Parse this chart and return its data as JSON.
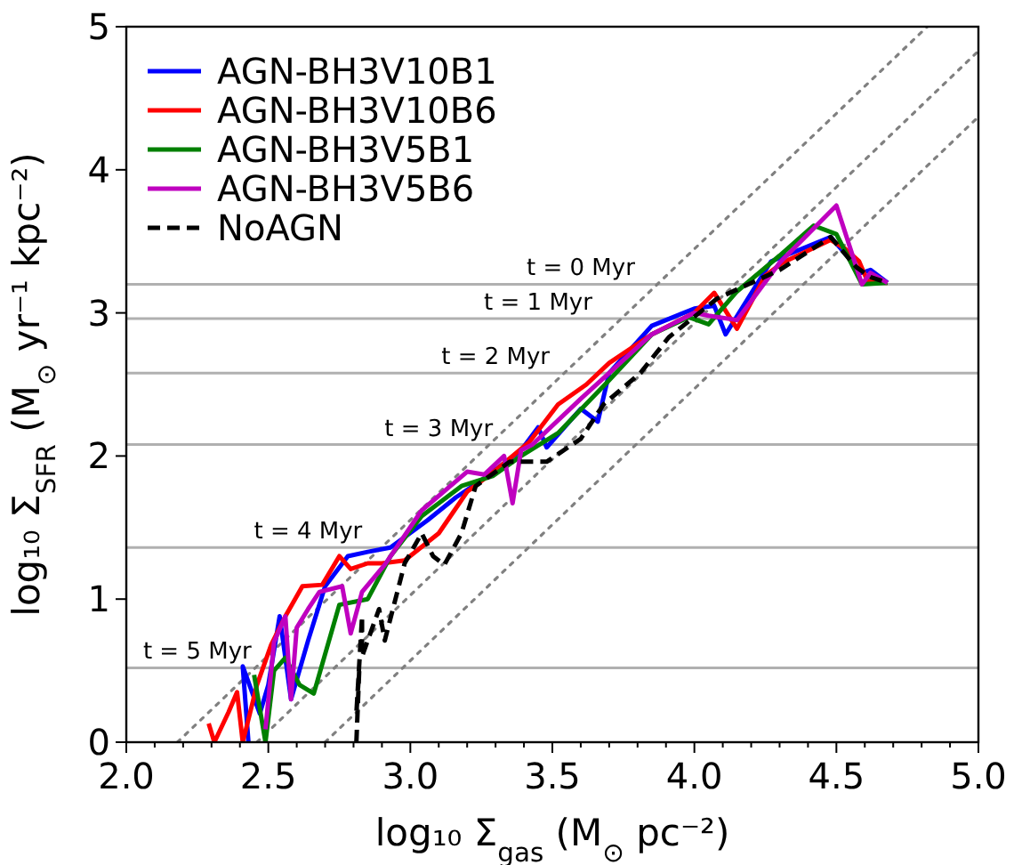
{
  "chart_data": {
    "type": "line",
    "xlabel": "log₁₀ Σ$_{gas}$ (M$_{⊙}$ pc⁻²)",
    "ylabel": "log₁₀ Σ$_{SFR}$ (M$_{⊙}$ yr⁻¹ kpc⁻²)",
    "xlim": [
      2,
      5
    ],
    "ylim": [
      0,
      5
    ],
    "xticks": [
      {
        "value": 2,
        "label": "2.0"
      },
      {
        "value": 2.1,
        "label": null
      },
      {
        "value": 2.2,
        "label": null
      },
      {
        "value": 2.3,
        "label": null
      },
      {
        "value": 2.4,
        "label": null
      },
      {
        "value": 2.5,
        "label": "2.5"
      },
      {
        "value": 2.6,
        "label": null
      },
      {
        "value": 2.7,
        "label": null
      },
      {
        "value": 2.8,
        "label": null
      },
      {
        "value": 2.9,
        "label": null
      },
      {
        "value": 3,
        "label": "3.0"
      },
      {
        "value": 3.1,
        "label": null
      },
      {
        "value": 3.2,
        "label": null
      },
      {
        "value": 3.3,
        "label": null
      },
      {
        "value": 3.4,
        "label": null
      },
      {
        "value": 3.5,
        "label": "3.5"
      },
      {
        "value": 3.6,
        "label": null
      },
      {
        "value": 3.7,
        "label": null
      },
      {
        "value": 3.8,
        "label": null
      },
      {
        "value": 3.9,
        "label": null
      },
      {
        "value": 4,
        "label": "4.0"
      },
      {
        "value": 4.1,
        "label": null
      },
      {
        "value": 4.2,
        "label": null
      },
      {
        "value": 4.3,
        "label": null
      },
      {
        "value": 4.4,
        "label": null
      },
      {
        "value": 4.5,
        "label": "4.5"
      },
      {
        "value": 4.6,
        "label": null
      },
      {
        "value": 4.7,
        "label": null
      },
      {
        "value": 4.8,
        "label": null
      },
      {
        "value": 4.9,
        "label": null
      },
      {
        "value": 5,
        "label": "5.0"
      }
    ],
    "yticks": [
      0,
      1,
      2,
      3,
      4,
      5
    ],
    "grid": false,
    "legend": "top left",
    "series": [
      {
        "color": "#808080",
        "line_style": "dotted",
        "x": [
          2.18,
          4.82
        ],
        "values": [
          0,
          5
        ]
      },
      {
        "color": "#808080",
        "line_style": "dotted",
        "x": [
          2.46,
          5.0
        ],
        "values": [
          0,
          4.83
        ]
      },
      {
        "color": "#808080",
        "line_style": "dotted",
        "x": [
          2.7,
          5.0
        ],
        "values": [
          0,
          4.37
        ]
      },
      {
        "name": "AGN-BH3V10B1",
        "color": "#0000ff",
        "line_style": "solid",
        "x": [
          2.43,
          2.41,
          2.47,
          2.5,
          2.54,
          2.58,
          2.64,
          2.7,
          2.78,
          2.85,
          2.93,
          3.06,
          3.16,
          3.25,
          3.39,
          3.45,
          3.48,
          3.6,
          3.66,
          3.7,
          3.85,
          4.0,
          4.07,
          4.11,
          4.27,
          4.48,
          4.59,
          4.62,
          4.68
        ],
        "values": [
          0.0,
          0.53,
          0.2,
          0.4,
          0.88,
          0.3,
          0.71,
          1.09,
          1.3,
          1.33,
          1.36,
          1.55,
          1.71,
          1.83,
          2.04,
          2.2,
          2.06,
          2.33,
          2.24,
          2.58,
          2.91,
          3.03,
          3.05,
          2.85,
          3.36,
          3.53,
          3.28,
          3.3,
          3.21
        ]
      },
      {
        "name": "AGN-BH3V10B6",
        "color": "#ff0000",
        "line_style": "solid",
        "x": [
          2.29,
          2.31,
          2.36,
          2.39,
          2.41,
          2.46,
          2.51,
          2.56,
          2.62,
          2.69,
          2.75,
          2.79,
          2.85,
          2.9,
          2.98,
          3.1,
          3.2,
          3.3,
          3.42,
          3.52,
          3.62,
          3.7,
          3.85,
          4.0,
          4.07,
          4.15,
          4.25,
          4.31,
          4.48,
          4.53,
          4.58,
          4.61,
          4.68
        ],
        "values": [
          0.13,
          0.0,
          0.21,
          0.35,
          0.0,
          0.4,
          0.68,
          0.88,
          1.09,
          1.1,
          1.3,
          1.21,
          1.25,
          1.25,
          1.27,
          1.46,
          1.75,
          1.9,
          2.1,
          2.36,
          2.5,
          2.65,
          2.85,
          3.0,
          3.14,
          2.89,
          3.26,
          3.35,
          3.51,
          3.45,
          3.36,
          3.22,
          3.21
        ]
      },
      {
        "name": "AGN-BH3V5B1",
        "color": "#008000",
        "line_style": "solid",
        "x": [
          2.45,
          2.49,
          2.52,
          2.56,
          2.61,
          2.66,
          2.75,
          2.85,
          2.93,
          3.04,
          3.18,
          3.29,
          3.39,
          3.52,
          3.7,
          3.85,
          3.98,
          4.05,
          4.15,
          4.3,
          4.42,
          4.5,
          4.59,
          4.68
        ],
        "values": [
          0.47,
          0.0,
          0.5,
          0.59,
          0.4,
          0.34,
          0.96,
          1.0,
          1.3,
          1.58,
          1.79,
          1.86,
          2.0,
          2.16,
          2.53,
          2.85,
          2.97,
          2.92,
          3.15,
          3.4,
          3.61,
          3.55,
          3.2,
          3.21
        ]
      },
      {
        "name": "AGN-BH3V5B6",
        "color": "#bf00bf",
        "line_style": "solid",
        "x": [
          2.49,
          2.52,
          2.56,
          2.58,
          2.6,
          2.64,
          2.68,
          2.76,
          2.79,
          2.83,
          2.91,
          3.04,
          3.2,
          3.26,
          3.33,
          3.36,
          3.39,
          3.43,
          3.6,
          3.7,
          3.85,
          4.0,
          4.05,
          4.15,
          4.3,
          4.5,
          4.59,
          4.62,
          4.68
        ],
        "values": [
          0.09,
          0.7,
          0.88,
          0.3,
          0.8,
          0.93,
          1.05,
          1.09,
          0.76,
          1.05,
          1.24,
          1.62,
          1.89,
          1.87,
          2.0,
          1.67,
          2.04,
          2.08,
          2.4,
          2.58,
          2.85,
          3.0,
          2.98,
          2.95,
          3.35,
          3.75,
          3.2,
          3.28,
          3.21
        ]
      },
      {
        "name": "NoAGN",
        "color": "#000000",
        "line_style": "dashed",
        "x": [
          2.81,
          2.82,
          2.81,
          2.83,
          2.83,
          2.89,
          2.91,
          2.98,
          3.04,
          3.08,
          3.12,
          3.18,
          3.23,
          3.35,
          3.48,
          3.6,
          3.68,
          3.81,
          3.91,
          4.08,
          4.3,
          4.48,
          4.57,
          4.62,
          4.68
        ],
        "values": [
          0.0,
          0.5,
          0.2,
          0.88,
          0.6,
          0.93,
          0.71,
          1.25,
          1.46,
          1.3,
          1.24,
          1.46,
          1.79,
          1.96,
          1.96,
          2.12,
          2.36,
          2.58,
          2.83,
          3.1,
          3.3,
          3.53,
          3.32,
          3.25,
          3.21
        ]
      }
    ],
    "ref_lines": [
      {
        "axis": "y",
        "value": 3.2,
        "color": "#b0b0b0"
      },
      {
        "axis": "y",
        "value": 2.96,
        "color": "#b0b0b0"
      },
      {
        "axis": "y",
        "value": 2.58,
        "color": "#b0b0b0"
      },
      {
        "axis": "y",
        "value": 2.08,
        "color": "#b0b0b0"
      },
      {
        "axis": "y",
        "value": 1.36,
        "color": "#b0b0b0"
      },
      {
        "axis": "y",
        "value": 0.52,
        "color": "#b0b0b0"
      }
    ],
    "annotations": [
      {
        "text": "t = 0 Myr",
        "x": 3.6,
        "y": 3.2
      },
      {
        "text": "t = 1 Myr",
        "x": 3.45,
        "y": 2.96
      },
      {
        "text": "t = 2 Myr",
        "x": 3.3,
        "y": 2.58
      },
      {
        "text": "t = 3 Myr",
        "x": 3.1,
        "y": 2.08
      },
      {
        "text": "t = 4 Myr",
        "x": 2.64,
        "y": 1.36
      },
      {
        "text": "t = 5 Myr",
        "x": 2.25,
        "y": 0.52
      }
    ]
  }
}
